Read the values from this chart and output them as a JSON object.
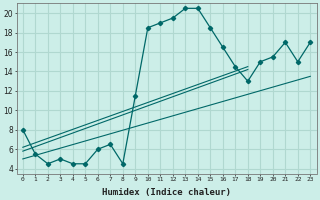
{
  "xlabel": "Humidex (Indice chaleur)",
  "bg_color": "#cceee8",
  "grid_color": "#b0d8d0",
  "line_color": "#006868",
  "xlim": [
    -0.5,
    23.5
  ],
  "ylim": [
    3.5,
    21
  ],
  "yticks": [
    4,
    6,
    8,
    10,
    12,
    14,
    16,
    18,
    20
  ],
  "xticks": [
    0,
    1,
    2,
    3,
    4,
    5,
    6,
    7,
    8,
    9,
    10,
    11,
    12,
    13,
    14,
    15,
    16,
    17,
    18,
    19,
    20,
    21,
    22,
    23
  ],
  "xtick_labels": [
    "0",
    "1",
    "2",
    "3",
    "4",
    "5",
    "6",
    "7",
    "8",
    "9",
    "10",
    "11",
    "12",
    "13",
    "14",
    "15",
    "16",
    "17",
    "18",
    "19",
    "20",
    "21",
    "22",
    "23"
  ],
  "main_series_x": [
    0,
    1,
    2,
    3,
    4,
    5,
    6,
    7,
    8,
    9,
    10,
    11,
    12,
    13,
    14,
    15,
    16,
    17,
    18,
    19,
    20,
    21,
    22,
    23
  ],
  "main_series_y": [
    8,
    5.5,
    4.5,
    5,
    4.5,
    4.5,
    6,
    6.5,
    4.5,
    11.5,
    18.5,
    19,
    19.5,
    20.5,
    20.5,
    18.5,
    16.5,
    14.5,
    13,
    15,
    15.5,
    17,
    15,
    17
  ],
  "line1_x": [
    0,
    18
  ],
  "line1_y": [
    6.2,
    14.5
  ],
  "line2_x": [
    0,
    18
  ],
  "line2_y": [
    5.8,
    14.2
  ],
  "line3_x": [
    0,
    23
  ],
  "line3_y": [
    5.0,
    13.5
  ]
}
